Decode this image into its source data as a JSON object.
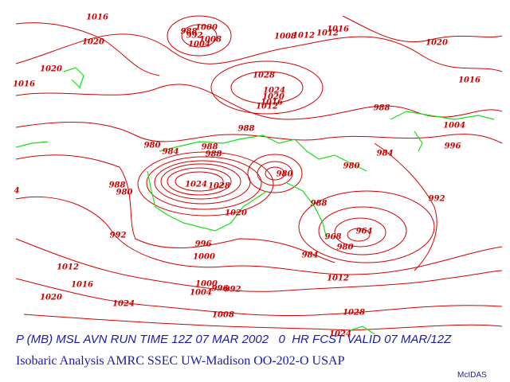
{
  "map": {
    "isobar_labels": [
      1016,
      1020,
      1016,
      1020,
      988,
      1000,
      992,
      1008,
      1004,
      1008,
      1012,
      1012,
      1016,
      1020,
      1016,
      1028,
      1024,
      1020,
      1016,
      1012,
      988,
      988,
      1004,
      996,
      984,
      980,
      984,
      988,
      988,
      980,
      988,
      980,
      1024,
      1028,
      980,
      992,
      988,
      1020,
      996,
      1000,
      964,
      968,
      980,
      984,
      992,
      1012,
      1016,
      1020,
      1024,
      1000,
      1004,
      996,
      992,
      1008,
      1012,
      1028,
      1024,
      4
    ],
    "caption": "P (MB) MSL AVN RUN TIME 12Z 07 MAR 2002   0  HR FCST VALID 07 MAR/12Z",
    "subcaption": "Isobaric Analysis AMRC SSEC UW-Madison OO-202-O USAP",
    "credit": "McIDAS"
  }
}
